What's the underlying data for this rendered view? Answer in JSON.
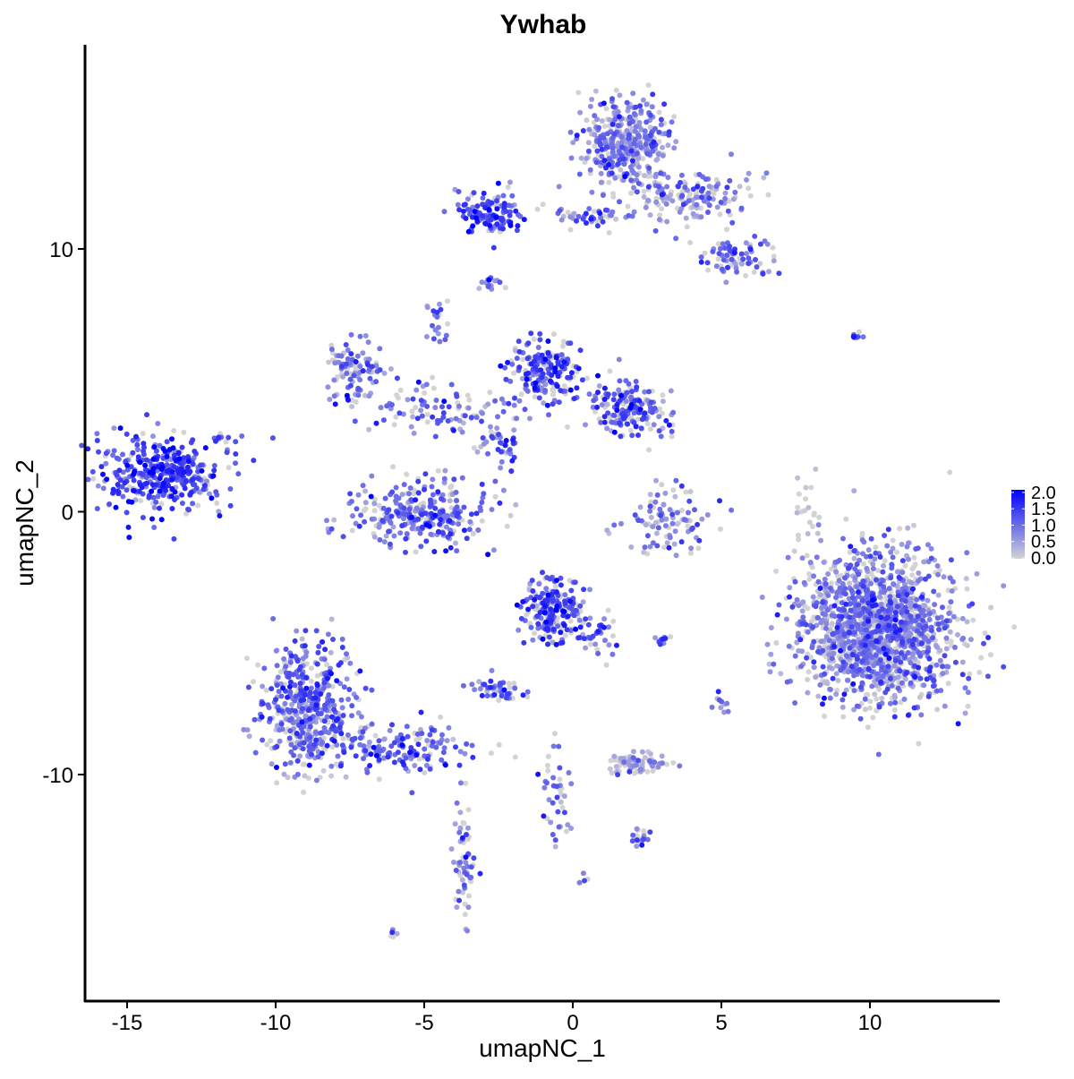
{
  "chart_data": {
    "type": "scatter",
    "title": "Ywhab",
    "xlabel": "umapNC_1",
    "ylabel": "umapNC_2",
    "xlim": [
      -16.4,
      14.4
    ],
    "ylim": [
      -18.3,
      17.5
    ],
    "xticks": [
      -15,
      -10,
      -5,
      0,
      5,
      10
    ],
    "yticks": [
      -10,
      0,
      10
    ],
    "xtick_labels": [
      "-15",
      "-10",
      "-5",
      "0",
      "5",
      "10"
    ],
    "ytick_labels": [
      "-10",
      "0",
      "10"
    ],
    "grid": false,
    "legend": {
      "position": "right",
      "type": "colorbar",
      "range": [
        0,
        2.0
      ],
      "ticks": [
        "2.0",
        "1.5",
        "1.0",
        "0.5",
        "0.0"
      ],
      "low_color": "#d3d3d3",
      "high_color": "#0000ff"
    },
    "clusters": [
      {
        "x": -13.9,
        "y": 1.4,
        "sx": 1.0,
        "sy": 0.7,
        "n": 400,
        "expr": 1.4
      },
      {
        "x": 1.8,
        "y": 14.0,
        "sx": 0.7,
        "sy": 0.9,
        "n": 400,
        "expr": 0.8
      },
      {
        "x": 4.0,
        "y": 11.9,
        "sx": 1.0,
        "sy": 0.5,
        "n": 150,
        "expr": 0.6
      },
      {
        "x": 5.5,
        "y": 9.6,
        "sx": 0.6,
        "sy": 0.4,
        "n": 80,
        "expr": 0.9
      },
      {
        "x": -2.7,
        "y": 11.4,
        "sx": 0.6,
        "sy": 0.4,
        "n": 130,
        "expr": 1.3
      },
      {
        "x": 0.6,
        "y": 11.2,
        "sx": 0.8,
        "sy": 0.2,
        "n": 40,
        "expr": 0.9
      },
      {
        "x": -0.9,
        "y": 5.3,
        "sx": 0.6,
        "sy": 0.6,
        "n": 200,
        "expr": 1.3
      },
      {
        "x": 1.9,
        "y": 3.9,
        "sx": 0.6,
        "sy": 0.5,
        "n": 180,
        "expr": 1.2
      },
      {
        "x": -7.3,
        "y": 5.3,
        "sx": 0.5,
        "sy": 0.6,
        "n": 100,
        "expr": 0.9
      },
      {
        "x": -4.2,
        "y": 3.8,
        "sx": 1.5,
        "sy": 0.5,
        "n": 100,
        "expr": 1.0
      },
      {
        "x": -4.6,
        "y": 7.3,
        "sx": 0.2,
        "sy": 0.5,
        "n": 20,
        "expr": 1.0
      },
      {
        "x": -5.2,
        "y": -0.1,
        "sx": 1.1,
        "sy": 0.6,
        "n": 300,
        "expr": 1.0
      },
      {
        "x": -2.5,
        "y": 2.6,
        "sx": 0.4,
        "sy": 0.5,
        "n": 40,
        "expr": 1.3
      },
      {
        "x": 3.2,
        "y": -0.3,
        "sx": 0.8,
        "sy": 0.6,
        "n": 100,
        "expr": 0.8
      },
      {
        "x": 10.2,
        "y": -4.5,
        "sx": 1.3,
        "sy": 1.4,
        "n": 1500,
        "expr": 0.8
      },
      {
        "x": -8.9,
        "y": -7.5,
        "sx": 0.8,
        "sy": 1.2,
        "n": 500,
        "expr": 1.0
      },
      {
        "x": -5.5,
        "y": -9.0,
        "sx": 1.2,
        "sy": 0.5,
        "n": 150,
        "expr": 1.0
      },
      {
        "x": -3.7,
        "y": -13.5,
        "sx": 0.2,
        "sy": 1.3,
        "n": 60,
        "expr": 0.8
      },
      {
        "x": -0.6,
        "y": -3.8,
        "sx": 0.5,
        "sy": 0.6,
        "n": 250,
        "expr": 1.3
      },
      {
        "x": 0.8,
        "y": -4.6,
        "sx": 0.3,
        "sy": 0.4,
        "n": 30,
        "expr": 1.1
      },
      {
        "x": -2.5,
        "y": -6.8,
        "sx": 0.4,
        "sy": 0.2,
        "n": 50,
        "expr": 1.2
      },
      {
        "x": 2.2,
        "y": -9.6,
        "sx": 0.5,
        "sy": 0.2,
        "n": 80,
        "expr": 0.4
      },
      {
        "x": -0.5,
        "y": -10.8,
        "sx": 0.3,
        "sy": 0.9,
        "n": 40,
        "expr": 1.0
      },
      {
        "x": -2.8,
        "y": 8.7,
        "sx": 0.2,
        "sy": 0.15,
        "n": 15,
        "expr": 1.0
      },
      {
        "x": 9.5,
        "y": 6.7,
        "sx": 0.15,
        "sy": 0.1,
        "n": 8,
        "expr": 1.3
      },
      {
        "x": -11.8,
        "y": 2.7,
        "sx": 0.2,
        "sy": 0.15,
        "n": 10,
        "expr": 1.2
      },
      {
        "x": -6.0,
        "y": -16.1,
        "sx": 0.1,
        "sy": 0.1,
        "n": 5,
        "expr": 1.2
      },
      {
        "x": 2.3,
        "y": -12.4,
        "sx": 0.2,
        "sy": 0.2,
        "n": 20,
        "expr": 1.0
      },
      {
        "x": 5.0,
        "y": -7.3,
        "sx": 0.15,
        "sy": 0.2,
        "n": 10,
        "expr": 0.7
      },
      {
        "x": 3.0,
        "y": -4.9,
        "sx": 0.15,
        "sy": 0.1,
        "n": 10,
        "expr": 1.2
      },
      {
        "x": 7.9,
        "y": 0.0,
        "sx": 0.2,
        "sy": 0.7,
        "n": 20,
        "expr": 0.2
      },
      {
        "x": 0.5,
        "y": -14.0,
        "sx": 0.1,
        "sy": 0.1,
        "n": 4,
        "expr": 1.0
      }
    ]
  }
}
